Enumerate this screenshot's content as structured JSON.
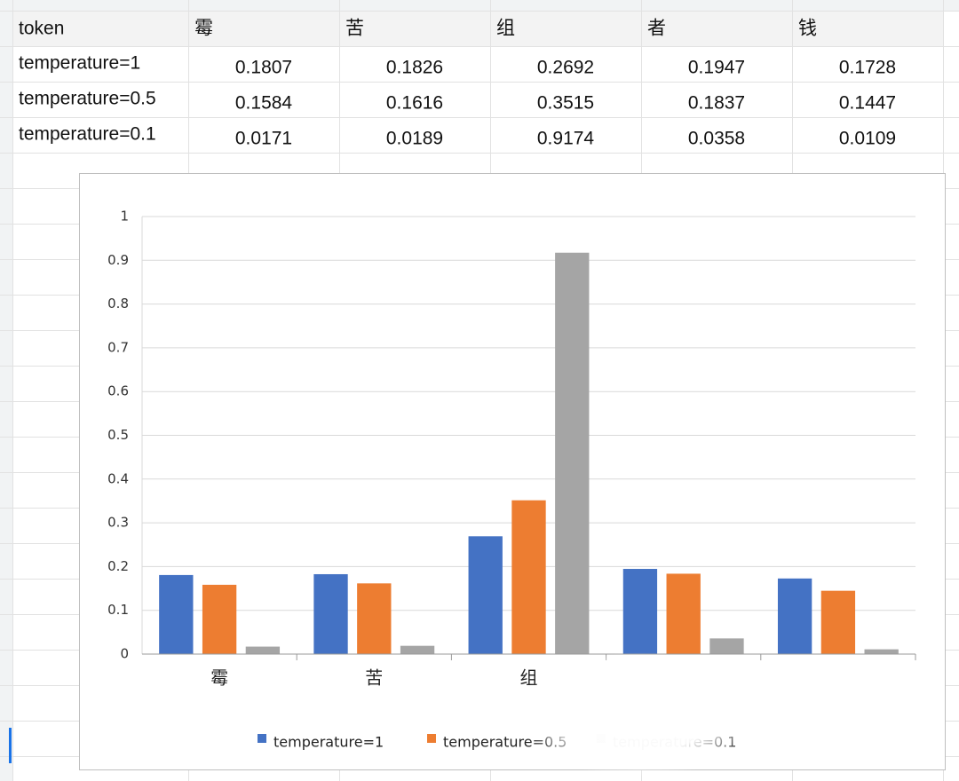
{
  "table": {
    "header": [
      "token",
      "霉",
      "苦",
      "组",
      "者",
      "钱"
    ],
    "rows": [
      [
        "temperature=1",
        0.1807,
        0.1826,
        0.2692,
        0.1947,
        0.1728
      ],
      [
        "temperature=0.5",
        0.1584,
        0.1616,
        0.3515,
        0.1837,
        0.1447
      ],
      [
        "temperature=0.1",
        0.0171,
        0.0189,
        0.9174,
        0.0358,
        0.0109
      ]
    ]
  },
  "chart_data": {
    "type": "bar",
    "categories": [
      "霉",
      "苦",
      "组",
      null,
      null
    ],
    "series": [
      {
        "name": "temperature=1",
        "color": "#4472c4",
        "values": [
          0.1807,
          0.1826,
          0.2692,
          0.1947,
          0.1728
        ]
      },
      {
        "name": "temperature=0.5",
        "color": "#ed7d31",
        "values": [
          0.1584,
          0.1616,
          0.3515,
          0.1837,
          0.1447
        ]
      },
      {
        "name": "temperature=0.1",
        "color": "#a5a5a5",
        "values": [
          0.0171,
          0.0189,
          0.9174,
          0.0358,
          0.0109
        ]
      }
    ],
    "ylim": [
      0,
      1
    ],
    "yticks": [
      0,
      0.1,
      0.2,
      0.3,
      0.4,
      0.5,
      0.6,
      0.7,
      0.8,
      0.9,
      1
    ],
    "grid": true,
    "legend": "bottom"
  }
}
